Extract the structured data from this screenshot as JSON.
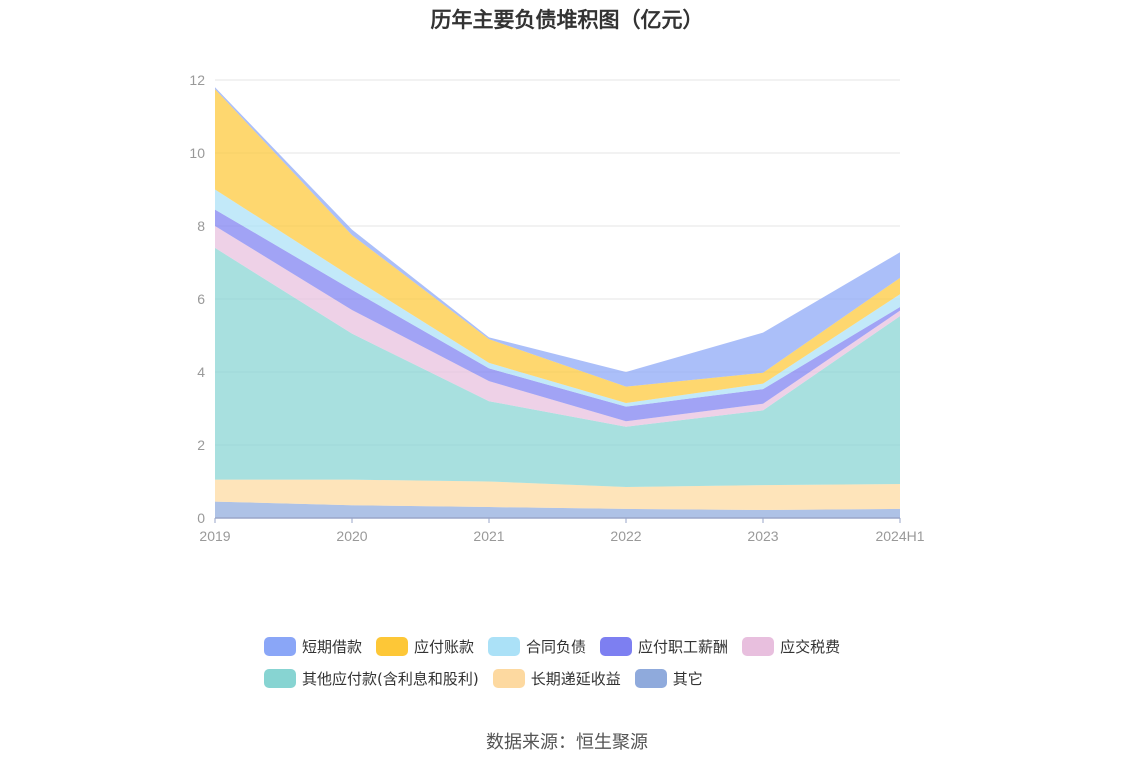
{
  "chart_data": {
    "type": "area",
    "stacked": true,
    "title": "历年主要负债堆积图（亿元）",
    "categories": [
      "2019",
      "2020",
      "2021",
      "2022",
      "2023",
      "2024H1"
    ],
    "ylim": [
      0,
      12
    ],
    "yticks": [
      "0",
      "2",
      "4",
      "6",
      "8",
      "10",
      "12"
    ],
    "grid": true,
    "legend_position": "bottom",
    "series": [
      {
        "name": "其它",
        "color": "#8faadc",
        "values": [
          0.45,
          0.35,
          0.3,
          0.25,
          0.22,
          0.25
        ]
      },
      {
        "name": "长期递延收益",
        "color": "#fdd9a0",
        "values": [
          0.6,
          0.7,
          0.7,
          0.6,
          0.68,
          0.68
        ]
      },
      {
        "name": "其他应付款(含利息和股利)",
        "color": "#87d4d2",
        "values": [
          6.35,
          4.0,
          2.2,
          1.65,
          2.05,
          4.6
        ]
      },
      {
        "name": "应交税费",
        "color": "#e8bfde",
        "values": [
          0.6,
          0.65,
          0.55,
          0.15,
          0.18,
          0.15
        ]
      },
      {
        "name": "应付职工薪酬",
        "color": "#7d7ff1",
        "values": [
          0.45,
          0.55,
          0.35,
          0.4,
          0.4,
          0.1
        ]
      },
      {
        "name": "合同负债",
        "color": "#abe1f7",
        "values": [
          0.55,
          0.35,
          0.15,
          0.1,
          0.15,
          0.35
        ]
      },
      {
        "name": "应付账款",
        "color": "#fdc737",
        "values": [
          2.75,
          1.15,
          0.65,
          0.45,
          0.3,
          0.45
        ]
      },
      {
        "name": "短期借款",
        "color": "#8aa6f7",
        "values": [
          0.05,
          0.15,
          0.05,
          0.4,
          1.1,
          0.7
        ]
      }
    ]
  },
  "legend": [
    {
      "label": "短期借款",
      "color": "#8aa6f7"
    },
    {
      "label": "应付账款",
      "color": "#fdc737"
    },
    {
      "label": "合同负债",
      "color": "#abe1f7"
    },
    {
      "label": "应付职工薪酬",
      "color": "#7d7ff1"
    },
    {
      "label": "应交税费",
      "color": "#e8bfde"
    },
    {
      "label": "其他应付款(含利息和股利)",
      "color": "#87d4d2"
    },
    {
      "label": "长期递延收益",
      "color": "#fdd9a0"
    },
    {
      "label": "其它",
      "color": "#8faadc"
    }
  ],
  "source": "数据来源：恒生聚源"
}
